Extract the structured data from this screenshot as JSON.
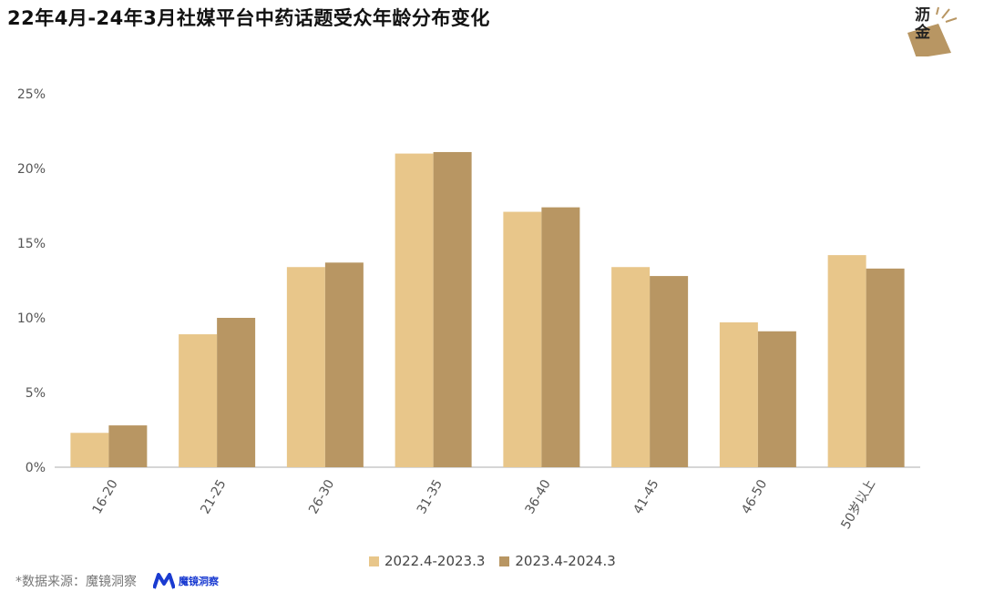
{
  "title": "22年4月-24年3月社媒平台中药话题受众年龄分布变化",
  "logo": {
    "text_line1": "沥",
    "text_line2": "金"
  },
  "source": {
    "label": "*数据来源：魔镜洞察",
    "brand_name": "魔镜洞察"
  },
  "colors": {
    "series1": "#e8c68a",
    "series2": "#b89663",
    "axis": "#c8c8c8"
  },
  "chart_data": {
    "type": "bar",
    "categories": [
      "16-20",
      "21-25",
      "26-30",
      "31-35",
      "36-40",
      "41-45",
      "46-50",
      "50岁以上"
    ],
    "series": [
      {
        "name": "2022.4-2023.3",
        "values": [
          2.3,
          8.9,
          13.4,
          21.0,
          17.1,
          13.4,
          9.7,
          14.2
        ]
      },
      {
        "name": "2023.4-2024.3",
        "values": [
          2.8,
          10.0,
          13.7,
          21.1,
          17.4,
          12.8,
          9.1,
          13.3
        ]
      }
    ],
    "y_ticks": [
      "0%",
      "5%",
      "10%",
      "15%",
      "20%",
      "25%"
    ],
    "ylim": [
      0,
      25
    ],
    "legend_position": "bottom",
    "grid": false
  }
}
